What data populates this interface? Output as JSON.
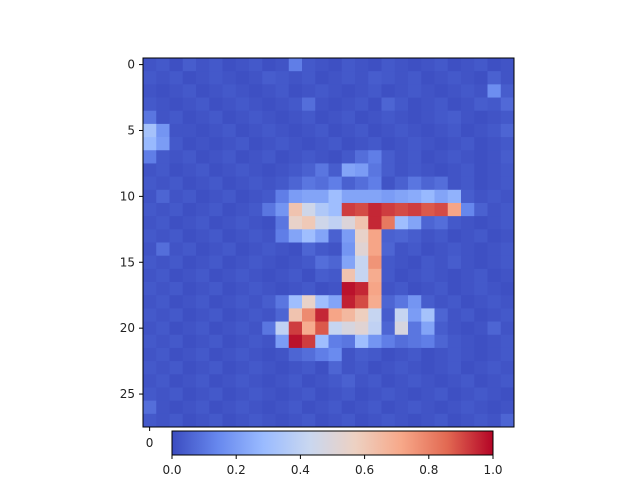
{
  "chart_data": {
    "type": "heatmap",
    "title": "",
    "xlabel": "",
    "ylabel": "",
    "rows": 28,
    "cols": 28,
    "xlim": [
      -0.5,
      27.5
    ],
    "ylim": [
      27.5,
      -0.5
    ],
    "y_ticks": [
      0,
      5,
      10,
      15,
      20,
      25
    ],
    "y_tick_labels": [
      "0",
      "5",
      "10",
      "15",
      "20",
      "25"
    ],
    "x_ticks": [
      0
    ],
    "x_tick_labels": [
      "0"
    ],
    "colormap": "coolwarm",
    "colormap_stops": [
      "#3b4cc0",
      "#6788ee",
      "#9abbff",
      "#c9d7f0",
      "#edd1c2",
      "#f7a889",
      "#e26952",
      "#b40426"
    ],
    "colorbar": {
      "orientation": "horizontal",
      "location": "bottom",
      "range": [
        0,
        1
      ],
      "ticks": [
        0.0,
        0.2,
        0.4,
        0.6,
        0.8,
        1.0
      ],
      "tick_labels": [
        "0.0",
        "0.2",
        "0.4",
        "0.6",
        "0.8",
        "1.0"
      ]
    },
    "values": [
      [
        0.02,
        0.03,
        0.01,
        0.04,
        0.02,
        0.03,
        0.01,
        0.02,
        0.03,
        0.01,
        0.02,
        0.12,
        0.03,
        0.02,
        0.01,
        0.03,
        0.02,
        0.01,
        0.03,
        0.02,
        0.01,
        0.02,
        0.03,
        0.01,
        0.02,
        0.03,
        0.01,
        0.02
      ],
      [
        0.03,
        0.02,
        0.03,
        0.01,
        0.02,
        0.03,
        0.02,
        0.01,
        0.02,
        0.04,
        0.03,
        0.02,
        0.03,
        0.01,
        0.02,
        0.03,
        0.02,
        0.04,
        0.03,
        0.02,
        0.03,
        0.01,
        0.02,
        0.03,
        0.02,
        0.01,
        0.05,
        0.02
      ],
      [
        0.02,
        0.01,
        0.02,
        0.03,
        0.01,
        0.02,
        0.03,
        0.02,
        0.01,
        0.02,
        0.03,
        0.01,
        0.02,
        0.03,
        0.02,
        0.01,
        0.02,
        0.03,
        0.01,
        0.02,
        0.03,
        0.02,
        0.01,
        0.02,
        0.03,
        0.02,
        0.16,
        0.04
      ],
      [
        0.03,
        0.02,
        0.01,
        0.02,
        0.03,
        0.01,
        0.02,
        0.03,
        0.02,
        0.01,
        0.02,
        0.03,
        0.08,
        0.02,
        0.01,
        0.02,
        0.03,
        0.01,
        0.06,
        0.03,
        0.01,
        0.02,
        0.03,
        0.01,
        0.02,
        0.04,
        0.03,
        0.07
      ],
      [
        0.1,
        0.02,
        0.03,
        0.01,
        0.02,
        0.03,
        0.01,
        0.02,
        0.03,
        0.02,
        0.01,
        0.02,
        0.03,
        0.01,
        0.02,
        0.03,
        0.01,
        0.02,
        0.03,
        0.02,
        0.01,
        0.02,
        0.03,
        0.04,
        0.02,
        0.01,
        0.02,
        0.03
      ],
      [
        0.32,
        0.18,
        0.02,
        0.02,
        0.01,
        0.02,
        0.03,
        0.01,
        0.02,
        0.03,
        0.02,
        0.01,
        0.02,
        0.03,
        0.01,
        0.02,
        0.03,
        0.01,
        0.02,
        0.03,
        0.02,
        0.01,
        0.02,
        0.03,
        0.01,
        0.02,
        0.03,
        0.06
      ],
      [
        0.28,
        0.2,
        0.03,
        0.01,
        0.02,
        0.01,
        0.02,
        0.03,
        0.01,
        0.02,
        0.03,
        0.02,
        0.01,
        0.02,
        0.03,
        0.01,
        0.02,
        0.03,
        0.01,
        0.02,
        0.03,
        0.02,
        0.01,
        0.02,
        0.03,
        0.01,
        0.02,
        0.03
      ],
      [
        0.12,
        0.03,
        0.02,
        0.03,
        0.01,
        0.02,
        0.03,
        0.01,
        0.02,
        0.03,
        0.01,
        0.02,
        0.03,
        0.02,
        0.01,
        0.03,
        0.08,
        0.12,
        0.04,
        0.02,
        0.03,
        0.01,
        0.02,
        0.03,
        0.02,
        0.01,
        0.02,
        0.04
      ],
      [
        0.02,
        0.03,
        0.01,
        0.02,
        0.03,
        0.01,
        0.02,
        0.03,
        0.02,
        0.01,
        0.02,
        0.03,
        0.05,
        0.1,
        0.04,
        0.22,
        0.2,
        0.1,
        0.04,
        0.02,
        0.03,
        0.02,
        0.01,
        0.02,
        0.03,
        0.01,
        0.02,
        0.03
      ],
      [
        0.03,
        0.02,
        0.03,
        0.01,
        0.02,
        0.03,
        0.01,
        0.02,
        0.03,
        0.02,
        0.03,
        0.06,
        0.1,
        0.08,
        0.12,
        0.05,
        0.08,
        0.12,
        0.02,
        0.05,
        0.1,
        0.06,
        0.08,
        0.02,
        0.03,
        0.01,
        0.02,
        0.03
      ],
      [
        0.02,
        0.06,
        0.02,
        0.03,
        0.01,
        0.02,
        0.03,
        0.01,
        0.02,
        0.03,
        0.12,
        0.2,
        0.22,
        0.22,
        0.3,
        0.22,
        0.22,
        0.22,
        0.2,
        0.22,
        0.24,
        0.28,
        0.22,
        0.26,
        0.04,
        0.02,
        0.03,
        0.02
      ],
      [
        0.03,
        0.02,
        0.03,
        0.01,
        0.02,
        0.03,
        0.01,
        0.02,
        0.03,
        0.1,
        0.18,
        0.62,
        0.45,
        0.35,
        0.3,
        0.92,
        0.9,
        0.95,
        0.92,
        0.9,
        0.92,
        0.88,
        0.9,
        0.72,
        0.14,
        0.05,
        0.02,
        0.03
      ],
      [
        0.02,
        0.03,
        0.01,
        0.02,
        0.03,
        0.01,
        0.02,
        0.03,
        0.02,
        0.01,
        0.1,
        0.55,
        0.6,
        0.45,
        0.4,
        0.5,
        0.62,
        0.95,
        0.82,
        0.3,
        0.22,
        0.06,
        0.08,
        0.03,
        0.02,
        0.01,
        0.02,
        0.03
      ],
      [
        0.03,
        0.02,
        0.03,
        0.01,
        0.02,
        0.03,
        0.01,
        0.02,
        0.03,
        0.02,
        0.12,
        0.22,
        0.3,
        0.22,
        0.05,
        0.2,
        0.55,
        0.72,
        0.05,
        0.06,
        0.04,
        0.02,
        0.03,
        0.01,
        0.02,
        0.03,
        0.01,
        0.02
      ],
      [
        0.02,
        0.08,
        0.02,
        0.03,
        0.01,
        0.02,
        0.03,
        0.01,
        0.02,
        0.03,
        0.02,
        0.01,
        0.06,
        0.03,
        0.02,
        0.18,
        0.52,
        0.72,
        0.06,
        0.02,
        0.03,
        0.01,
        0.02,
        0.03,
        0.02,
        0.01,
        0.02,
        0.03
      ],
      [
        0.03,
        0.02,
        0.03,
        0.01,
        0.02,
        0.03,
        0.01,
        0.02,
        0.03,
        0.02,
        0.01,
        0.02,
        0.03,
        0.08,
        0.06,
        0.22,
        0.42,
        0.76,
        0.03,
        0.02,
        0.01,
        0.03,
        0.02,
        0.04,
        0.02,
        0.01,
        0.02,
        0.03
      ],
      [
        0.02,
        0.03,
        0.01,
        0.02,
        0.03,
        0.01,
        0.02,
        0.03,
        0.02,
        0.01,
        0.02,
        0.03,
        0.01,
        0.04,
        0.03,
        0.62,
        0.42,
        0.7,
        0.03,
        0.01,
        0.02,
        0.03,
        0.02,
        0.01,
        0.02,
        0.03,
        0.01,
        0.02
      ],
      [
        0.03,
        0.02,
        0.03,
        0.01,
        0.02,
        0.03,
        0.01,
        0.02,
        0.03,
        0.02,
        0.01,
        0.02,
        0.03,
        0.01,
        0.02,
        0.98,
        0.95,
        0.72,
        0.02,
        0.03,
        0.01,
        0.02,
        0.03,
        0.01,
        0.02,
        0.03,
        0.02,
        0.01
      ],
      [
        0.02,
        0.03,
        0.01,
        0.02,
        0.03,
        0.01,
        0.02,
        0.03,
        0.02,
        0.04,
        0.1,
        0.3,
        0.55,
        0.3,
        0.22,
        0.96,
        0.9,
        0.7,
        0.06,
        0.1,
        0.18,
        0.04,
        0.02,
        0.03,
        0.01,
        0.02,
        0.03,
        0.02
      ],
      [
        0.03,
        0.02,
        0.03,
        0.01,
        0.02,
        0.03,
        0.01,
        0.02,
        0.03,
        0.02,
        0.06,
        0.62,
        0.78,
        0.95,
        0.72,
        0.66,
        0.58,
        0.42,
        0.04,
        0.42,
        0.2,
        0.32,
        0.06,
        0.02,
        0.03,
        0.01,
        0.02,
        0.03
      ],
      [
        0.02,
        0.03,
        0.01,
        0.02,
        0.03,
        0.01,
        0.02,
        0.03,
        0.02,
        0.1,
        0.4,
        0.92,
        0.7,
        0.88,
        0.42,
        0.48,
        0.52,
        0.4,
        0.06,
        0.48,
        0.1,
        0.22,
        0.04,
        0.02,
        0.01,
        0.02,
        0.06,
        0.02
      ],
      [
        0.03,
        0.02,
        0.03,
        0.01,
        0.02,
        0.03,
        0.01,
        0.02,
        0.03,
        0.02,
        0.2,
        0.98,
        0.92,
        0.3,
        0.12,
        0.1,
        0.3,
        0.18,
        0.12,
        0.08,
        0.1,
        0.12,
        0.06,
        0.03,
        0.02,
        0.01,
        0.02,
        0.03
      ],
      [
        0.02,
        0.03,
        0.01,
        0.02,
        0.03,
        0.01,
        0.02,
        0.03,
        0.02,
        0.01,
        0.02,
        0.06,
        0.08,
        0.12,
        0.15,
        0.02,
        0.04,
        0.03,
        0.01,
        0.02,
        0.03,
        0.01,
        0.02,
        0.03,
        0.02,
        0.01,
        0.02,
        0.03
      ],
      [
        0.03,
        0.02,
        0.03,
        0.01,
        0.02,
        0.03,
        0.01,
        0.02,
        0.03,
        0.02,
        0.01,
        0.02,
        0.03,
        0.01,
        0.06,
        0.02,
        0.03,
        0.01,
        0.02,
        0.03,
        0.02,
        0.01,
        0.02,
        0.03,
        0.01,
        0.02,
        0.03,
        0.02
      ],
      [
        0.02,
        0.03,
        0.01,
        0.02,
        0.03,
        0.01,
        0.02,
        0.03,
        0.02,
        0.01,
        0.02,
        0.03,
        0.01,
        0.02,
        0.03,
        0.05,
        0.02,
        0.03,
        0.01,
        0.02,
        0.03,
        0.02,
        0.01,
        0.02,
        0.03,
        0.01,
        0.02,
        0.03
      ],
      [
        0.03,
        0.02,
        0.03,
        0.01,
        0.02,
        0.03,
        0.01,
        0.02,
        0.03,
        0.02,
        0.01,
        0.02,
        0.03,
        0.01,
        0.02,
        0.03,
        0.01,
        0.02,
        0.03,
        0.02,
        0.01,
        0.02,
        0.03,
        0.01,
        0.02,
        0.03,
        0.02,
        0.01
      ],
      [
        0.08,
        0.02,
        0.01,
        0.02,
        0.03,
        0.01,
        0.02,
        0.03,
        0.02,
        0.01,
        0.02,
        0.03,
        0.01,
        0.02,
        0.03,
        0.01,
        0.02,
        0.03,
        0.01,
        0.02,
        0.03,
        0.02,
        0.01,
        0.02,
        0.03,
        0.02,
        0.01,
        0.02
      ],
      [
        0.03,
        0.02,
        0.03,
        0.01,
        0.02,
        0.03,
        0.01,
        0.02,
        0.03,
        0.02,
        0.01,
        0.02,
        0.03,
        0.01,
        0.02,
        0.03,
        0.01,
        0.02,
        0.03,
        0.02,
        0.01,
        0.02,
        0.03,
        0.01,
        0.02,
        0.03,
        0.02,
        0.06
      ]
    ]
  }
}
